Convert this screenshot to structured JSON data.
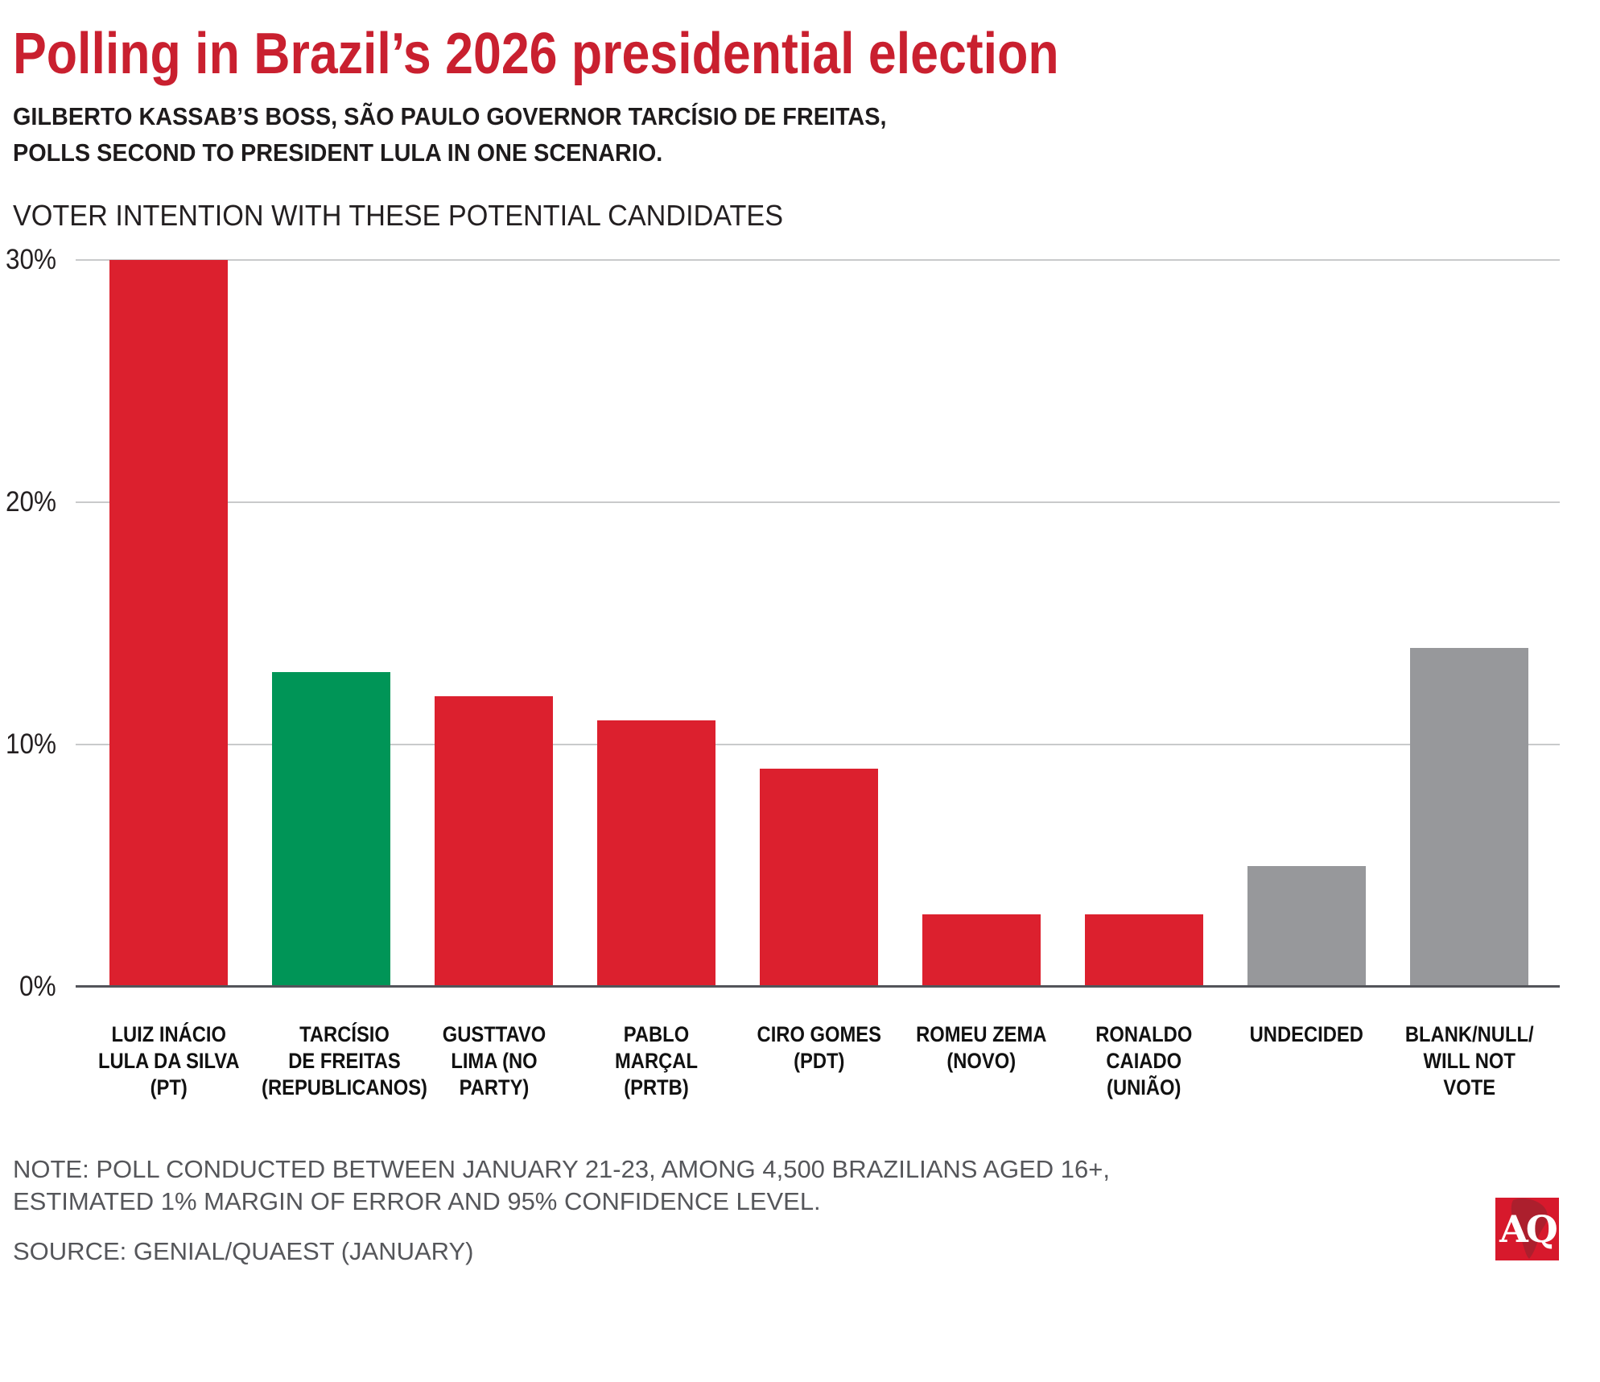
{
  "header": {
    "title": "Polling in Brazil’s 2026 presidential election",
    "subtitle": "GILBERTO KASSAB’S BOSS, SÃO PAULO GOVERNOR TARCÍSIO DE FREITAS,\nPOLLS SECOND TO PRESIDENT LULA IN ONE SCENARIO."
  },
  "chart_data": {
    "type": "bar",
    "title": "VOTER INTENTION WITH THESE POTENTIAL CANDIDATES",
    "xlabel": "",
    "ylabel": "",
    "ylim": [
      0,
      30
    ],
    "grid": true,
    "legend": "none",
    "yticks": [
      {
        "label": "0%",
        "value": 0
      },
      {
        "label": "10%",
        "value": 10
      },
      {
        "label": "20%",
        "value": 20
      },
      {
        "label": "30%",
        "value": 30
      }
    ],
    "categories": [
      "LUIZ INÁCIO\nLULA DA SILVA\n(PT)",
      "TARCÍSIO\nDE FREITAS\n(REPUBLICANOS)",
      "GUSTTAVO\nLIMA (NO\nPARTY)",
      "PABLO\nMARÇAL\n(PRTB)",
      "CIRO GOMES\n(PDT)",
      "ROMEU ZEMA\n(NOVO)",
      "RONALDO\nCAIADO\n(UNIÃO)",
      "UNDECIDED",
      "BLANK/NULL/\nWILL NOT\nVOTE"
    ],
    "ids": [
      "lula",
      "tarcisio-de-freitas",
      "gusttavo-lima",
      "pablo-marcal",
      "ciro-gomes",
      "romeu-zema",
      "ronaldo-caiado",
      "undecided",
      "blank-null-will-not-vote"
    ],
    "values": [
      30,
      13,
      12,
      11,
      9,
      3,
      3,
      5,
      14
    ],
    "bar_colors": [
      "#DC202E",
      "#009557",
      "#DC202E",
      "#DC202E",
      "#DC202E",
      "#DC202E",
      "#DC202E",
      "#97989B",
      "#97989B"
    ]
  },
  "footer": {
    "note": "NOTE: POLL CONDUCTED BETWEEN JANUARY 21-23, AMONG 4,500 BRAZILIANS AGED 16+,\nESTIMATED 1% MARGIN OF ERROR AND 95% CONFIDENCE LEVEL.",
    "source": "SOURCE: GENIAL/QUAEST (JANUARY)",
    "logo_text": "AQ"
  },
  "colors": {
    "title_red": "#C9202F",
    "bar_red": "#DC202E",
    "bar_green": "#009557",
    "bar_gray": "#97989B",
    "note_gray": "#55565A",
    "gridline": "#C9CACB",
    "axis_line": "#53545A",
    "logo_red": "#D7192C",
    "logo_map_red": "#AC1F2D"
  }
}
